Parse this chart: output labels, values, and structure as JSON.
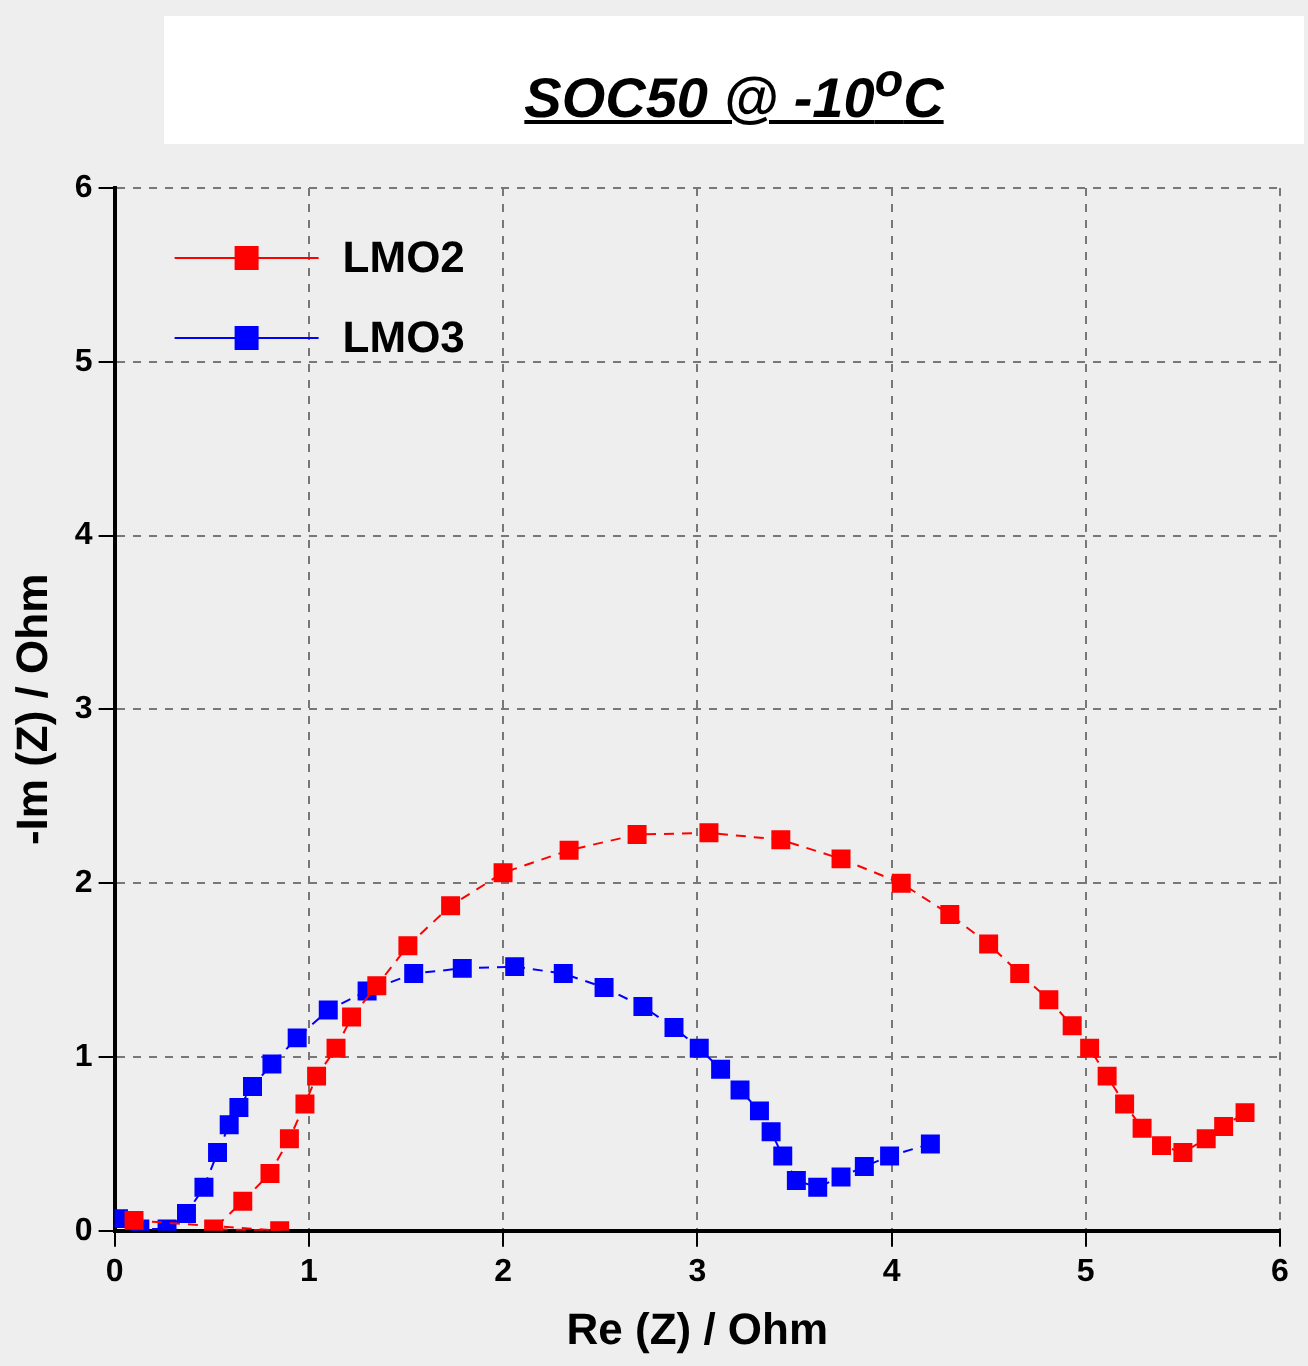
{
  "chart_data": {
    "type": "line",
    "title": "SOC50 @ -10$^{o}$C",
    "xlabel": "Re (Z) / Ohm",
    "ylabel": "-Im (Z) / Ohm",
    "xlim": [
      0,
      6
    ],
    "xticks": [
      0,
      1,
      2,
      3,
      4,
      5,
      6
    ],
    "ylim": [
      0,
      6
    ],
    "yticks": [
      0,
      1,
      2,
      3,
      4,
      5,
      6
    ],
    "grid": true,
    "legend": "top left",
    "marker": "square",
    "line_style": "dashed",
    "series": [
      {
        "name": "LMO2",
        "color": "#ff0000",
        "x": [
          0.1,
          0.85,
          0.51,
          0.66,
          0.8,
          0.9,
          0.98,
          1.04,
          1.14,
          1.22,
          1.35,
          1.51,
          1.73,
          2.0,
          2.34,
          2.69,
          3.06,
          3.43,
          3.74,
          4.05,
          4.3,
          4.5,
          4.66,
          4.81,
          4.93,
          5.02,
          5.11,
          5.2,
          5.29,
          5.39,
          5.5,
          5.62,
          5.71,
          5.82
        ],
        "values": [
          0.06,
          0,
          0.01,
          0.17,
          0.33,
          0.53,
          0.73,
          0.89,
          1.05,
          1.23,
          1.41,
          1.64,
          1.87,
          2.06,
          2.19,
          2.28,
          2.29,
          2.25,
          2.14,
          2.0,
          1.82,
          1.65,
          1.48,
          1.33,
          1.18,
          1.05,
          0.89,
          0.73,
          0.59,
          0.49,
          0.45,
          0.53,
          0.6,
          0.68
        ]
      },
      {
        "name": "LMO3",
        "color": "#0000ff",
        "x": [
          0.02,
          0.13,
          0.27,
          0.37,
          0.46,
          0.53,
          0.59,
          0.64,
          0.71,
          0.81,
          0.94,
          1.1,
          1.3,
          1.54,
          1.79,
          2.06,
          2.31,
          2.52,
          2.72,
          2.88,
          3.01,
          3.12,
          3.22,
          3.32,
          3.38,
          3.44,
          3.51,
          3.62,
          3.74,
          3.86,
          3.99,
          4.2
        ],
        "values": [
          0.07,
          0.01,
          0.01,
          0.1,
          0.25,
          0.45,
          0.61,
          0.71,
          0.83,
          0.96,
          1.11,
          1.27,
          1.38,
          1.48,
          1.51,
          1.52,
          1.48,
          1.4,
          1.29,
          1.17,
          1.05,
          0.93,
          0.81,
          0.69,
          0.57,
          0.43,
          0.29,
          0.25,
          0.31,
          0.37,
          0.43,
          0.5
        ]
      }
    ]
  }
}
